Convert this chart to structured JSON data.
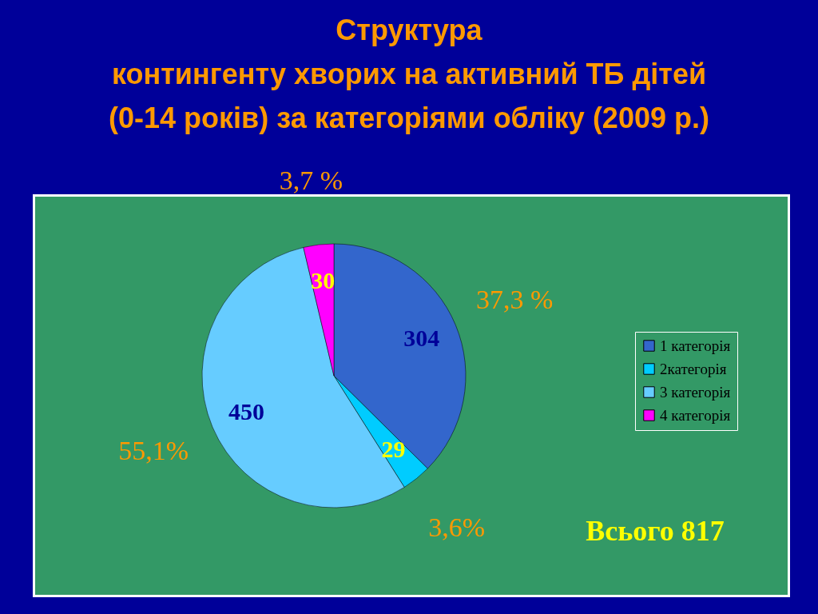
{
  "chart_data": {
    "type": "pie",
    "title": "Структура\nконтингенту хворих на активний ТБ дітей\n(0-14 років) за категоріями обліку (2009 р.)",
    "categories": [
      "1 категорія",
      "2категорія",
      "3 категорія",
      "4 категорія"
    ],
    "values": [
      37.3,
      3.6,
      55.1,
      3.7
    ],
    "colors": [
      "#3366cc",
      "#00ccff",
      "#66ccff",
      "#ff00ff"
    ],
    "value_labels": [
      "37,3 %",
      "3,6%",
      "55,1%",
      "3,7 %"
    ],
    "legend": "right",
    "annotations": [
      {
        "text": "304",
        "x": "1 категорія"
      },
      {
        "text": "29",
        "x": "2категорія"
      },
      {
        "text": "450",
        "x": "3 категорія"
      },
      {
        "text": "30",
        "x": "4 категорія"
      },
      "Всього 817"
    ]
  }
}
